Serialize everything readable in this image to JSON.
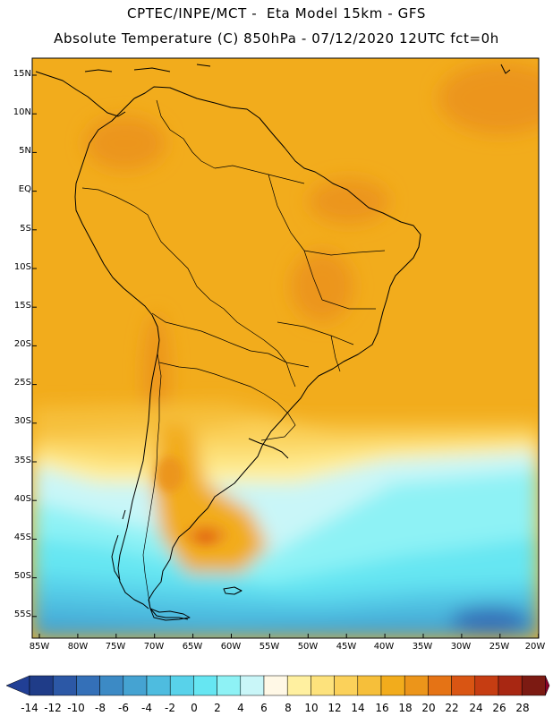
{
  "header": {
    "line1": "CPTEC/INPE/MCT -  Eta Model 15km - GFS",
    "line2": "Absolute Temperature (C) 850hPa - 07/12/2020 12UTC fct=0h"
  },
  "map": {
    "region": "South America",
    "lon_range": [
      -86,
      -20
    ],
    "lat_range": [
      -58,
      17
    ],
    "lat_labels": [
      "15N",
      "10N",
      "5N",
      "EQ",
      "5S",
      "10S",
      "15S",
      "20S",
      "25S",
      "30S",
      "35S",
      "40S",
      "45S",
      "50S",
      "55S"
    ],
    "lon_labels": [
      "85W",
      "80W",
      "75W",
      "70W",
      "65W",
      "60W",
      "55W",
      "50W",
      "45W",
      "40W",
      "35W",
      "30W",
      "25W",
      "20W"
    ]
  },
  "colorbar": {
    "labels": [
      "-14",
      "-12",
      "-10",
      "-8",
      "-6",
      "-4",
      "-2",
      "0",
      "2",
      "4",
      "6",
      "8",
      "10",
      "12",
      "14",
      "16",
      "18",
      "20",
      "22",
      "24",
      "26",
      "28"
    ],
    "colors": [
      "#1f3c88",
      "#2c58a6",
      "#3470b8",
      "#3c8ac5",
      "#45a3d2",
      "#4ebcdf",
      "#58d2ea",
      "#66e6f2",
      "#8ef2f5",
      "#c9f6f8",
      "#fff8e6",
      "#fff0a0",
      "#fde27c",
      "#fbd15a",
      "#f6bf3a",
      "#f2ac1c",
      "#ec951a",
      "#e57315",
      "#d95513",
      "#c63d12",
      "#a82712",
      "#7c1a12"
    ],
    "under_color": "#213f95",
    "over_color": "#8c0028"
  }
}
